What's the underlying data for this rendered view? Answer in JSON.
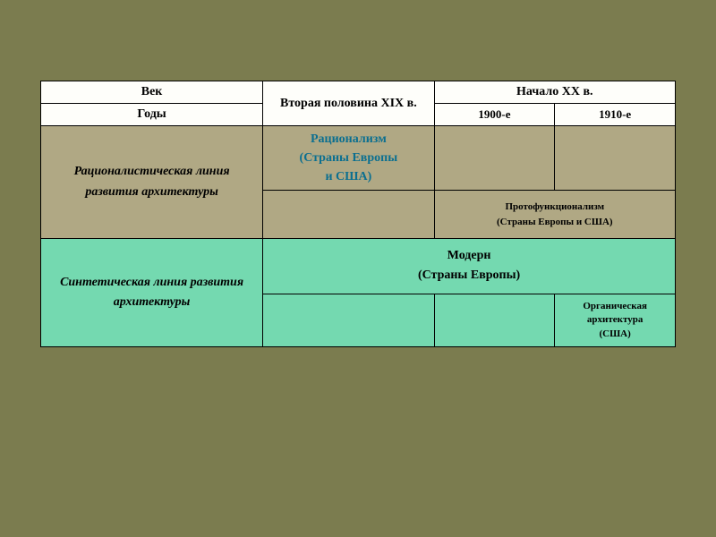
{
  "header": {
    "century": "Век",
    "col2": "Вторая половина XIX в.",
    "col3": "Начало XX в.",
    "years": "Годы",
    "y1900": "1900-е",
    "y1910": "1910-е"
  },
  "rows": {
    "rationalistic": {
      "label": "Рационалистическая линия развития архитектуры",
      "rationalism": "Рационализм\n(Страны Европы\nи США)",
      "protofunc": "Протофункционализм\n(Страны Европы и США)"
    },
    "synthetic": {
      "label": "Синтетическая линия развития архитектуры",
      "modern": "Модерн\n(Страны Европы)",
      "organic": "Органическая\nархитектура\n(США)"
    }
  },
  "colors": {
    "page_bg": "#7b7c4f",
    "header_bg": "#fefefa",
    "rational_bg": "#b0a884",
    "synth_bg": "#74d9b0",
    "rational_text": "#0b6f90",
    "border": "#000000"
  },
  "table": {
    "type": "table",
    "col_widths_pct": [
      35,
      27,
      19,
      19
    ],
    "font_family": "Times New Roman",
    "base_fontsize": 13,
    "header_fontsize": 14,
    "small_fontsize": 11
  }
}
